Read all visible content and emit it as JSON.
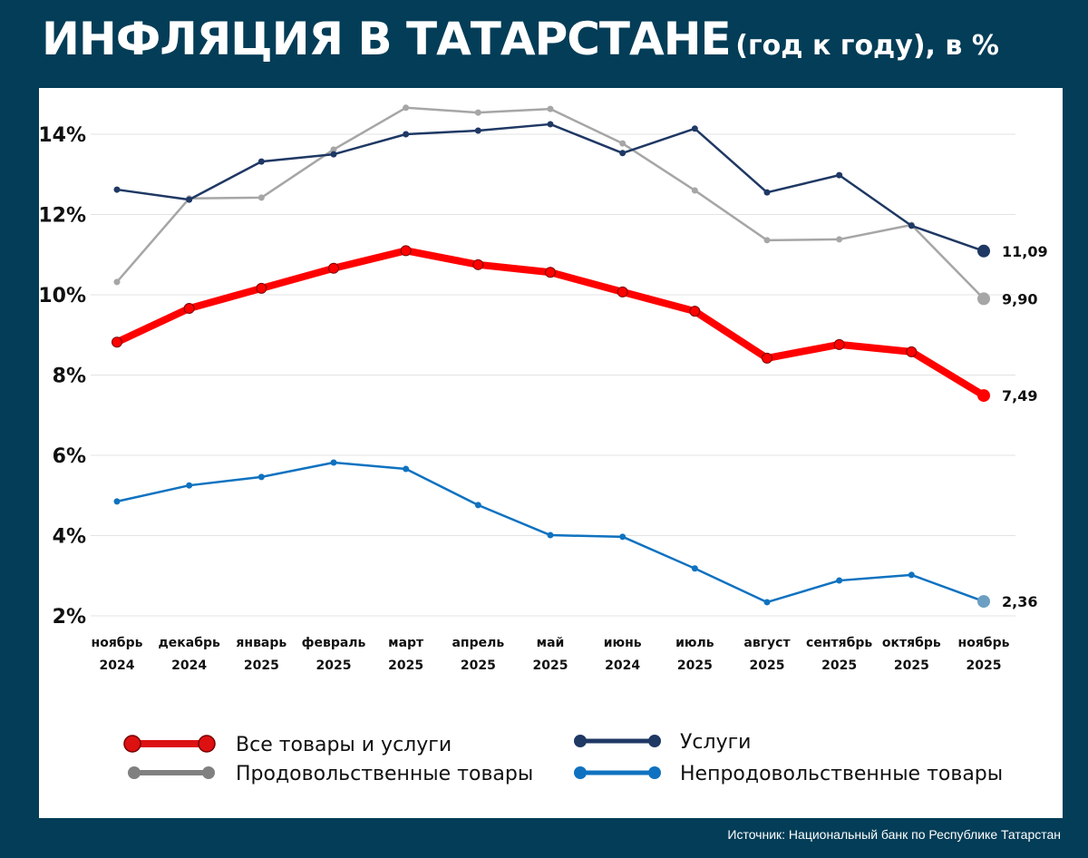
{
  "title": {
    "main": "ИНФЛЯЦИЯ В ТАТАРСТАНЕ",
    "suffix": "(год к году), в %"
  },
  "source": "Источник: Национальный банк по Республике Татарстан",
  "chart_data": {
    "type": "line",
    "title": "ИНФЛЯЦИЯ В ТАТАРСТАНЕ (год к году), в %",
    "categories": [
      [
        "ноябрь",
        "2024"
      ],
      [
        "декабрь",
        "2024"
      ],
      [
        "январь",
        "2025"
      ],
      [
        "февраль",
        "2025"
      ],
      [
        "март",
        "2025"
      ],
      [
        "апрель",
        "2025"
      ],
      [
        "май",
        "2025"
      ],
      [
        "июнь",
        "2024"
      ],
      [
        "июль",
        "2025"
      ],
      [
        "август",
        "2025"
      ],
      [
        "сентябрь",
        "2025"
      ],
      [
        "октябрь",
        "2025"
      ],
      [
        "ноябрь",
        "2025"
      ]
    ],
    "yticks": [
      "2%",
      "4%",
      "6%",
      "8%",
      "10%",
      "12%",
      "14%"
    ],
    "ytick_values": [
      2,
      4,
      6,
      8,
      10,
      12,
      14
    ],
    "ylim": [
      2,
      14
    ],
    "grid": true,
    "legend_placement": "bottom",
    "series": [
      {
        "name": "Продовольственные товары",
        "color": "#a6a6a6",
        "end_label": "9,90",
        "values": [
          10.32,
          12.4,
          12.42,
          13.62,
          14.66,
          14.54,
          14.63,
          13.77,
          12.6,
          11.36,
          11.38,
          11.74,
          9.9
        ]
      },
      {
        "name": "Услуги",
        "color": "#1f3864",
        "end_label": "11,09",
        "values": [
          12.62,
          12.37,
          13.32,
          13.5,
          14.0,
          14.09,
          14.25,
          13.53,
          14.14,
          12.55,
          12.98,
          11.72,
          11.09
        ]
      },
      {
        "name": "Все товары и услуги",
        "color": "#ff0000",
        "end_label": "7,49",
        "values": [
          8.82,
          9.66,
          10.16,
          10.66,
          11.1,
          10.75,
          10.56,
          10.07,
          9.59,
          8.42,
          8.76,
          8.58,
          7.49
        ]
      },
      {
        "name": "Непродовольственные товары",
        "color": "#0f72c0",
        "end_label": "2,36",
        "values": [
          4.85,
          5.25,
          5.46,
          5.82,
          5.66,
          4.76,
          4.01,
          3.97,
          3.18,
          2.34,
          2.88,
          3.02,
          2.36
        ]
      }
    ]
  }
}
